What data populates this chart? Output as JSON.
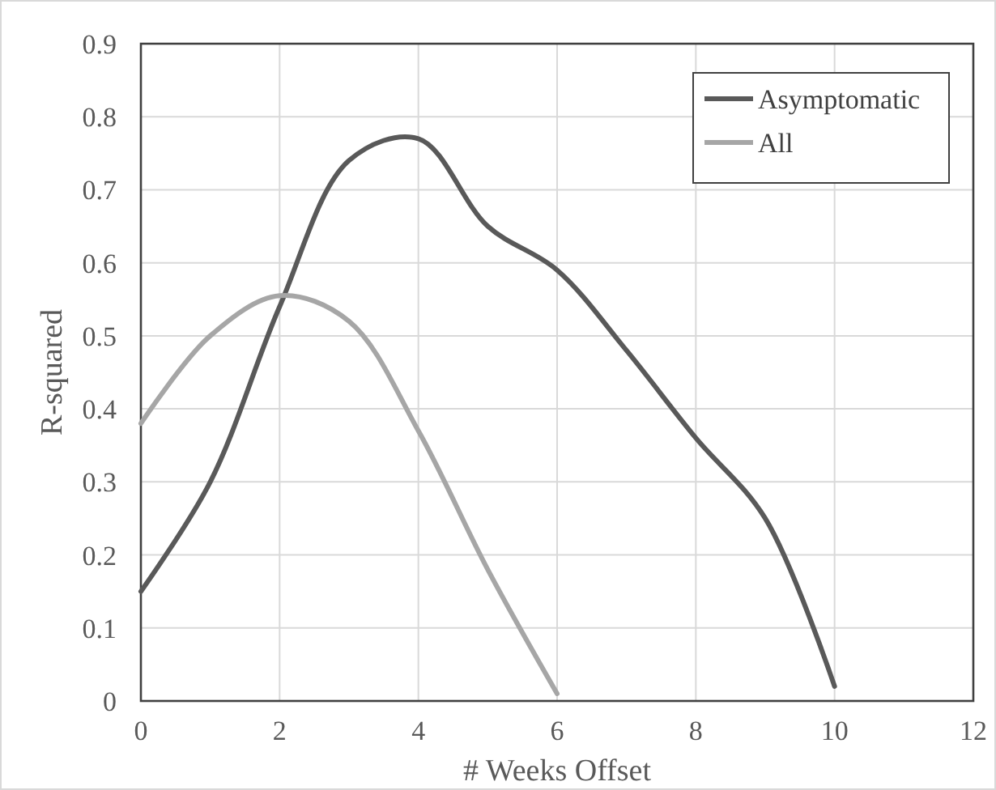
{
  "chart_data": {
    "type": "line",
    "xlabel": "# Weeks Offset",
    "ylabel": "R-squared",
    "xlim": [
      0,
      12
    ],
    "xticks": [
      0,
      2,
      4,
      6,
      8,
      10,
      12
    ],
    "ylim": [
      0,
      0.9
    ],
    "yticks": [
      0,
      0.1,
      0.2,
      0.3,
      0.4,
      0.5,
      0.6,
      0.7,
      0.8,
      0.9
    ],
    "grid": true,
    "legend": "top right",
    "marker": "none",
    "line_style": "solid",
    "series": [
      {
        "name": "Asymptomatic",
        "color": "#595959",
        "x": [
          0,
          1,
          2,
          3,
          4,
          5,
          6,
          7,
          8,
          9,
          10
        ],
        "values": [
          0.15,
          0.3,
          0.54,
          0.74,
          0.77,
          0.65,
          0.59,
          0.48,
          0.36,
          0.25,
          0.02
        ]
      },
      {
        "name": "All",
        "color": "#a6a6a6",
        "x": [
          0,
          1,
          2,
          3,
          4,
          5,
          6
        ],
        "values": [
          0.38,
          0.5,
          0.555,
          0.52,
          0.37,
          0.18,
          0.01
        ]
      }
    ]
  }
}
